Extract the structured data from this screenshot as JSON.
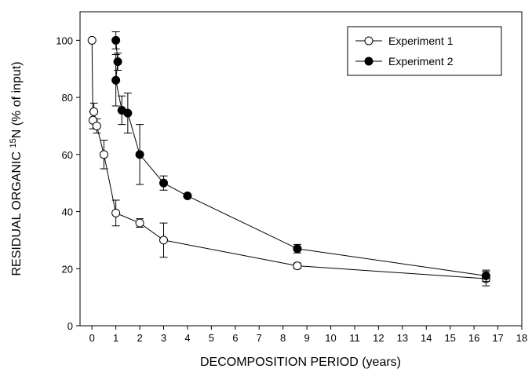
{
  "chart_data": {
    "type": "line",
    "x_label": "DECOMPOSITION PERIOD (years)",
    "y_label_parts": [
      "RESIDUAL ORGANIC ",
      "15",
      "N (% of input)"
    ],
    "xlim": [
      -0.5,
      18
    ],
    "ylim": [
      0,
      110
    ],
    "xticks": [
      0,
      1,
      2,
      3,
      4,
      5,
      6,
      7,
      8,
      9,
      10,
      11,
      12,
      13,
      14,
      15,
      16,
      17,
      18
    ],
    "yticks": [
      0,
      20,
      40,
      60,
      80,
      100
    ],
    "grid": false,
    "legend": "upper right",
    "series": [
      {
        "name": "Experiment 1",
        "color": "#000000",
        "marker": "open",
        "x": [
          0,
          0.04,
          0.08,
          0.2,
          0.5,
          1,
          2,
          3,
          8.6,
          16.5
        ],
        "values": [
          100,
          72,
          75,
          70,
          60,
          39.5,
          36,
          30,
          21,
          16.5
        ],
        "errors": [
          0,
          3,
          3,
          2.5,
          5,
          4.5,
          1.5,
          6,
          1,
          2.5
        ]
      },
      {
        "name": "Experiment 2",
        "color": "#000000",
        "marker": "filled",
        "x": [
          1,
          1.08,
          1.0,
          1.25,
          1.5,
          2,
          3,
          4,
          8.6,
          16.5
        ],
        "values": [
          100,
          92.5,
          86,
          75.5,
          74.5,
          60,
          50,
          45.5,
          27,
          17.5
        ],
        "errors": [
          3,
          3,
          9,
          5,
          7,
          10.5,
          2.5,
          0.5,
          1.5,
          2
        ]
      }
    ]
  }
}
